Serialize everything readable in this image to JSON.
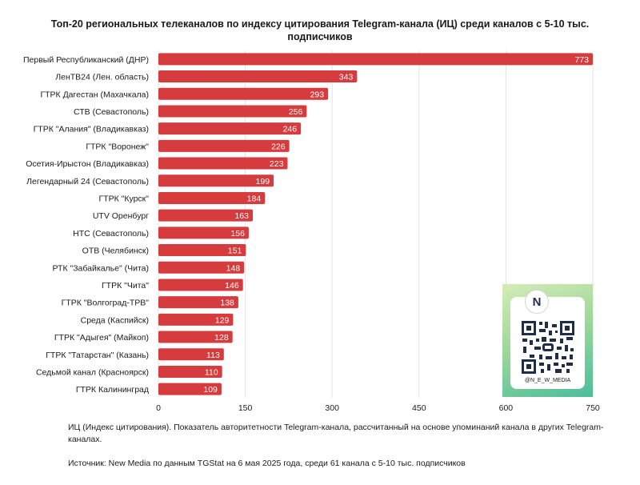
{
  "chart_data": {
    "type": "bar",
    "orientation": "horizontal",
    "title": "Топ-20 региональных телеканалов по индексу цитирования Telegram-канала (ИЦ) среди каналов с 5-10 тыс. подписчиков",
    "categories": [
      "Первый Республиканский (ДНР)",
      "ЛенТВ24 (Лен. область)",
      "ГТРК Дагестан (Махачкала)",
      "СТВ (Севастополь)",
      "ГТРК \"Алания\" (Владикавказ)",
      "ГТРК \"Воронеж\"",
      "Осетия-Ирыстон (Владикавказ)",
      "Легендарный 24 (Севастополь)",
      "ГТРК \"Курск\"",
      "UTV Оренбург",
      "НТС (Севастополь)",
      "ОТВ (Челябинск)",
      "РТК \"Забайкалье\" (Чита)",
      "ГТРК \"Чита\"",
      "ГТРК \"Волгоград-ТРВ\"",
      "Среда (Каспийск)",
      "ГТРК \"Адыгея\" (Майкоп)",
      "ГТРК \"Татарстан\" (Казань)",
      "Седьмой канал (Красноярск)",
      "ГТРК Калининград"
    ],
    "values": [
      773,
      343,
      293,
      256,
      246,
      226,
      223,
      199,
      184,
      163,
      156,
      151,
      148,
      146,
      138,
      129,
      128,
      113,
      110,
      109
    ],
    "xlim": [
      0,
      750
    ],
    "xticks": [
      0,
      150,
      300,
      450,
      600,
      750
    ],
    "grid": "vertical",
    "bar_color": "#d63b3e",
    "xlabel": "",
    "ylabel": ""
  },
  "qr": {
    "logo_text": "N",
    "handle": "@N_E_W_MEDIA"
  },
  "footnote": "ИЦ (Индекс цитирования). Показатель авторитетности Telegram-канала, рассчитанный на основе упоминаний канала в других Telegram-каналах.",
  "source": "Источник: New Media по данным TGStat на 6 мая 2025 года, среди 61 канала с 5-10 тыс. подписчиков"
}
